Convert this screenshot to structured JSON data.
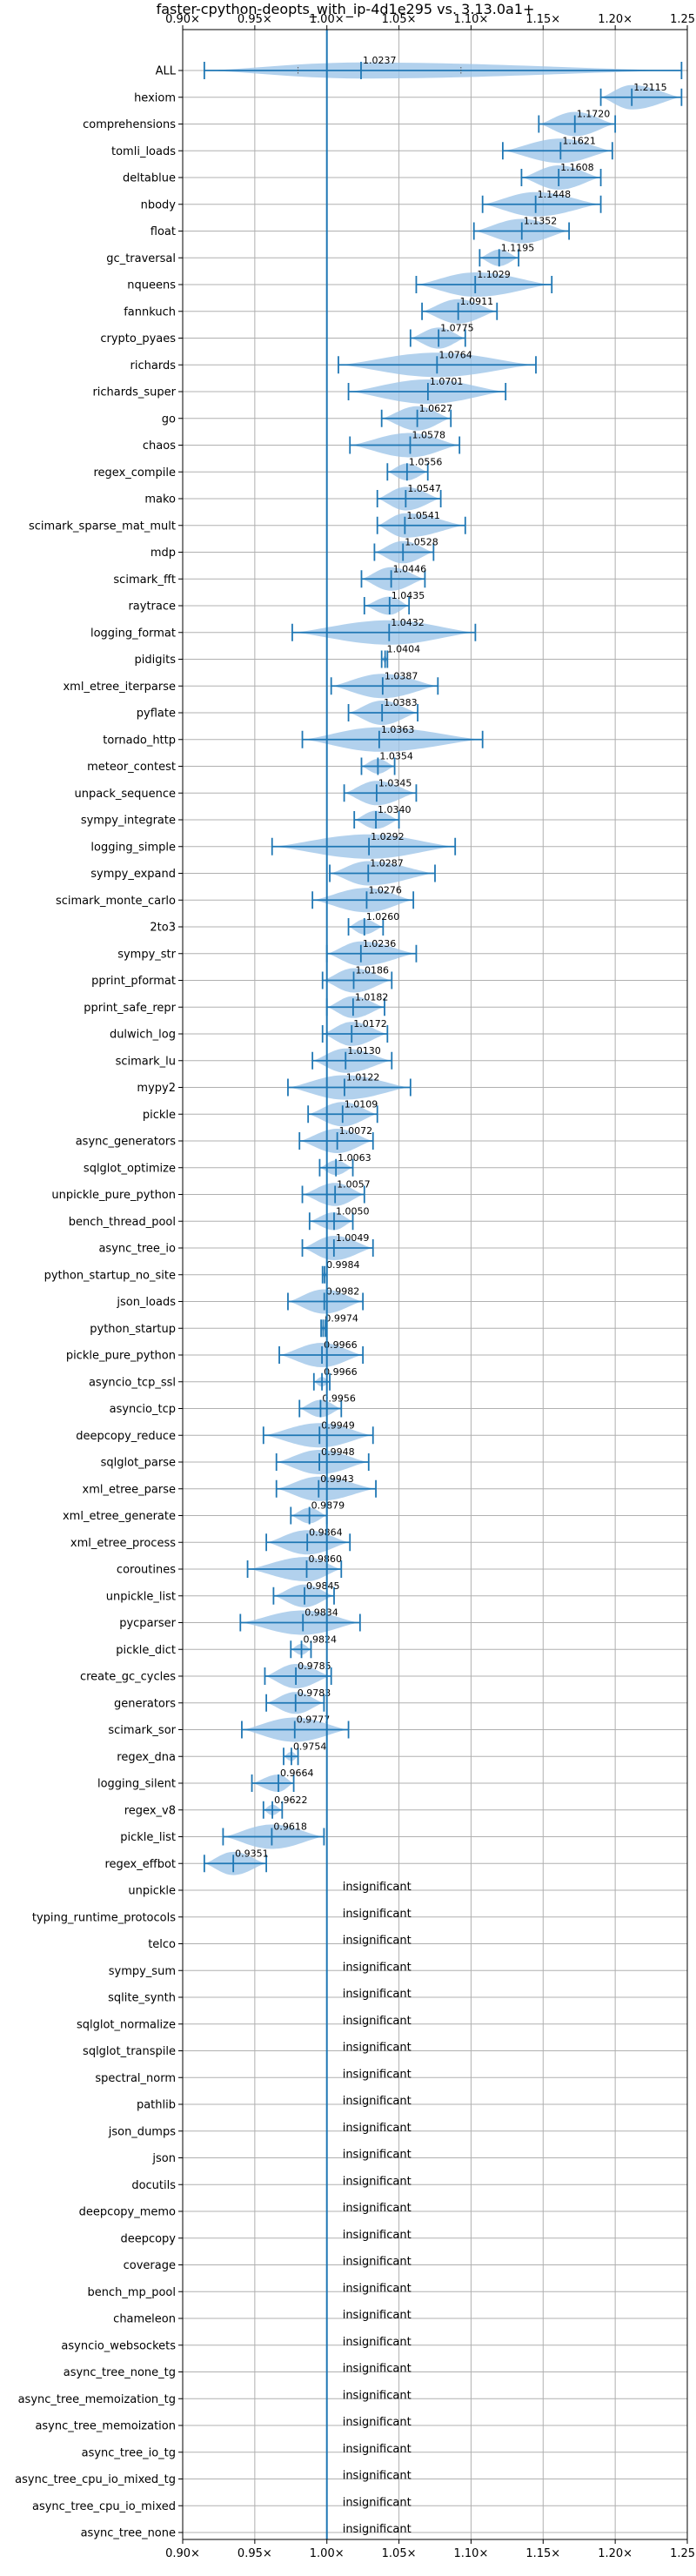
{
  "chart_data": {
    "type": "violin",
    "title": "faster-cpython-deopts_with_ip-4d1e295 vs. 3.13.0a1+",
    "xlabel": "",
    "ylabel": "",
    "xlim": [
      0.9,
      1.25
    ],
    "xticks": [
      "0.90×",
      "0.95×",
      "1.00×",
      "1.05×",
      "1.10×",
      "1.15×",
      "1.20×",
      "1.25×"
    ],
    "xtick_values": [
      0.9,
      0.95,
      1.0,
      1.05,
      1.1,
      1.15,
      1.2,
      1.25
    ],
    "reference_line": 1.0,
    "grid": true,
    "insignificant_label": "insignificant",
    "benchmarks": [
      {
        "name": "ALL",
        "mean": 1.0237,
        "min": 0.915,
        "max": 1.246,
        "p25": 0.98,
        "p75": 1.093,
        "width": 0.3
      },
      {
        "name": "hexiom",
        "mean": 1.2115,
        "min": 1.19,
        "max": 1.246
      },
      {
        "name": "comprehensions",
        "mean": 1.172,
        "min": 1.147,
        "max": 1.2
      },
      {
        "name": "tomli_loads",
        "mean": 1.1621,
        "min": 1.122,
        "max": 1.198
      },
      {
        "name": "deltablue",
        "mean": 1.1608,
        "min": 1.135,
        "max": 1.19
      },
      {
        "name": "nbody",
        "mean": 1.1448,
        "min": 1.108,
        "max": 1.19
      },
      {
        "name": "float",
        "mean": 1.1352,
        "min": 1.102,
        "max": 1.168
      },
      {
        "name": "gc_traversal",
        "mean": 1.1195,
        "min": 1.106,
        "max": 1.133
      },
      {
        "name": "nqueens",
        "mean": 1.1029,
        "min": 1.062,
        "max": 1.156
      },
      {
        "name": "fannkuch",
        "mean": 1.0911,
        "min": 1.066,
        "max": 1.118
      },
      {
        "name": "crypto_pyaes",
        "mean": 1.0775,
        "min": 1.058,
        "max": 1.096
      },
      {
        "name": "richards",
        "mean": 1.0764,
        "min": 1.008,
        "max": 1.145
      },
      {
        "name": "richards_super",
        "mean": 1.0701,
        "min": 1.015,
        "max": 1.124
      },
      {
        "name": "go",
        "mean": 1.0627,
        "min": 1.038,
        "max": 1.086
      },
      {
        "name": "chaos",
        "mean": 1.0578,
        "min": 1.016,
        "max": 1.092
      },
      {
        "name": "regex_compile",
        "mean": 1.0556,
        "min": 1.042,
        "max": 1.07
      },
      {
        "name": "mako",
        "mean": 1.0547,
        "min": 1.035,
        "max": 1.079
      },
      {
        "name": "scimark_sparse_mat_mult",
        "mean": 1.0541,
        "min": 1.035,
        "max": 1.096
      },
      {
        "name": "mdp",
        "mean": 1.0528,
        "min": 1.033,
        "max": 1.074
      },
      {
        "name": "scimark_fft",
        "mean": 1.0446,
        "min": 1.024,
        "max": 1.068
      },
      {
        "name": "raytrace",
        "mean": 1.0435,
        "min": 1.026,
        "max": 1.057
      },
      {
        "name": "logging_format",
        "mean": 1.0432,
        "min": 0.976,
        "max": 1.103
      },
      {
        "name": "pidigits",
        "mean": 1.0404,
        "min": 1.038,
        "max": 1.042
      },
      {
        "name": "xml_etree_iterparse",
        "mean": 1.0387,
        "min": 1.003,
        "max": 1.077
      },
      {
        "name": "pyflate",
        "mean": 1.0383,
        "min": 1.015,
        "max": 1.063
      },
      {
        "name": "tornado_http",
        "mean": 1.0363,
        "min": 0.983,
        "max": 1.108
      },
      {
        "name": "meteor_contest",
        "mean": 1.0354,
        "min": 1.024,
        "max": 1.047
      },
      {
        "name": "unpack_sequence",
        "mean": 1.0345,
        "min": 1.012,
        "max": 1.062
      },
      {
        "name": "sympy_integrate",
        "mean": 1.034,
        "min": 1.019,
        "max": 1.05
      },
      {
        "name": "logging_simple",
        "mean": 1.0292,
        "min": 0.962,
        "max": 1.089
      },
      {
        "name": "sympy_expand",
        "mean": 1.0287,
        "min": 1.002,
        "max": 1.075
      },
      {
        "name": "scimark_monte_carlo",
        "mean": 1.0276,
        "min": 0.99,
        "max": 1.06
      },
      {
        "name": "2to3",
        "mean": 1.026,
        "min": 1.015,
        "max": 1.039
      },
      {
        "name": "sympy_str",
        "mean": 1.0236,
        "min": 1.0,
        "max": 1.062
      },
      {
        "name": "pprint_pformat",
        "mean": 1.0186,
        "min": 0.997,
        "max": 1.045
      },
      {
        "name": "pprint_safe_repr",
        "mean": 1.0182,
        "min": 1.0,
        "max": 1.04
      },
      {
        "name": "dulwich_log",
        "mean": 1.0172,
        "min": 0.997,
        "max": 1.042
      },
      {
        "name": "scimark_lu",
        "mean": 1.013,
        "min": 0.99,
        "max": 1.045
      },
      {
        "name": "mypy2",
        "mean": 1.0122,
        "min": 0.973,
        "max": 1.058
      },
      {
        "name": "pickle",
        "mean": 1.0109,
        "min": 0.987,
        "max": 1.035
      },
      {
        "name": "async_generators",
        "mean": 1.0072,
        "min": 0.981,
        "max": 1.032
      },
      {
        "name": "sqlglot_optimize",
        "mean": 1.0063,
        "min": 0.995,
        "max": 1.018
      },
      {
        "name": "unpickle_pure_python",
        "mean": 1.0057,
        "min": 0.983,
        "max": 1.026
      },
      {
        "name": "bench_thread_pool",
        "mean": 1.005,
        "min": 0.988,
        "max": 1.018
      },
      {
        "name": "async_tree_io",
        "mean": 1.0049,
        "min": 0.983,
        "max": 1.032
      },
      {
        "name": "python_startup_no_site",
        "mean": 0.9984,
        "min": 0.997,
        "max": 1.0
      },
      {
        "name": "json_loads",
        "mean": 0.9982,
        "min": 0.973,
        "max": 1.025
      },
      {
        "name": "python_startup",
        "mean": 0.9974,
        "min": 0.996,
        "max": 0.999
      },
      {
        "name": "pickle_pure_python",
        "mean": 0.9966,
        "min": 0.967,
        "max": 1.025
      },
      {
        "name": "asyncio_tcp_ssl",
        "mean": 0.9966,
        "min": 0.991,
        "max": 1.002
      },
      {
        "name": "asyncio_tcp",
        "mean": 0.9956,
        "min": 0.981,
        "max": 1.01
      },
      {
        "name": "deepcopy_reduce",
        "mean": 0.9949,
        "min": 0.956,
        "max": 1.032
      },
      {
        "name": "sqlglot_parse",
        "mean": 0.9948,
        "min": 0.965,
        "max": 1.029
      },
      {
        "name": "xml_etree_parse",
        "mean": 0.9943,
        "min": 0.965,
        "max": 1.034
      },
      {
        "name": "xml_etree_generate",
        "mean": 0.9879,
        "min": 0.975,
        "max": 1.0
      },
      {
        "name": "xml_etree_process",
        "mean": 0.9864,
        "min": 0.958,
        "max": 1.016
      },
      {
        "name": "coroutines",
        "mean": 0.986,
        "min": 0.945,
        "max": 1.01
      },
      {
        "name": "unpickle_list",
        "mean": 0.9845,
        "min": 0.963,
        "max": 1.005
      },
      {
        "name": "pycparser",
        "mean": 0.9834,
        "min": 0.94,
        "max": 1.023
      },
      {
        "name": "pickle_dict",
        "mean": 0.9824,
        "min": 0.975,
        "max": 0.989
      },
      {
        "name": "create_gc_cycles",
        "mean": 0.9785,
        "min": 0.957,
        "max": 1.003
      },
      {
        "name": "generators",
        "mean": 0.9783,
        "min": 0.958,
        "max": 0.998
      },
      {
        "name": "scimark_sor",
        "mean": 0.9777,
        "min": 0.941,
        "max": 1.015
      },
      {
        "name": "regex_dna",
        "mean": 0.9754,
        "min": 0.97,
        "max": 0.98
      },
      {
        "name": "logging_silent",
        "mean": 0.9664,
        "min": 0.948,
        "max": 0.977
      },
      {
        "name": "regex_v8",
        "mean": 0.9622,
        "min": 0.956,
        "max": 0.969
      },
      {
        "name": "pickle_list",
        "mean": 0.9618,
        "min": 0.928,
        "max": 0.998
      },
      {
        "name": "regex_effbot",
        "mean": 0.9351,
        "min": 0.915,
        "max": 0.958
      },
      {
        "name": "unpickle",
        "insignificant": true
      },
      {
        "name": "typing_runtime_protocols",
        "insignificant": true
      },
      {
        "name": "telco",
        "insignificant": true
      },
      {
        "name": "sympy_sum",
        "insignificant": true
      },
      {
        "name": "sqlite_synth",
        "insignificant": true
      },
      {
        "name": "sqlglot_normalize",
        "insignificant": true
      },
      {
        "name": "sqlglot_transpile",
        "insignificant": true
      },
      {
        "name": "spectral_norm",
        "insignificant": true
      },
      {
        "name": "pathlib",
        "insignificant": true
      },
      {
        "name": "json_dumps",
        "insignificant": true
      },
      {
        "name": "json",
        "insignificant": true
      },
      {
        "name": "docutils",
        "insignificant": true
      },
      {
        "name": "deepcopy_memo",
        "insignificant": true
      },
      {
        "name": "deepcopy",
        "insignificant": true
      },
      {
        "name": "coverage",
        "insignificant": true
      },
      {
        "name": "bench_mp_pool",
        "insignificant": true
      },
      {
        "name": "chameleon",
        "insignificant": true
      },
      {
        "name": "asyncio_websockets",
        "insignificant": true
      },
      {
        "name": "async_tree_none_tg",
        "insignificant": true
      },
      {
        "name": "async_tree_memoization_tg",
        "insignificant": true
      },
      {
        "name": "async_tree_memoization",
        "insignificant": true
      },
      {
        "name": "async_tree_io_tg",
        "insignificant": true
      },
      {
        "name": "async_tree_cpu_io_mixed_tg",
        "insignificant": true
      },
      {
        "name": "async_tree_cpu_io_mixed",
        "insignificant": true
      },
      {
        "name": "async_tree_none",
        "insignificant": true
      }
    ]
  },
  "colors": {
    "line": "#1f77b4",
    "violin": "#9fc5e8",
    "grid": "#b0b0b0",
    "text": "#000000"
  }
}
